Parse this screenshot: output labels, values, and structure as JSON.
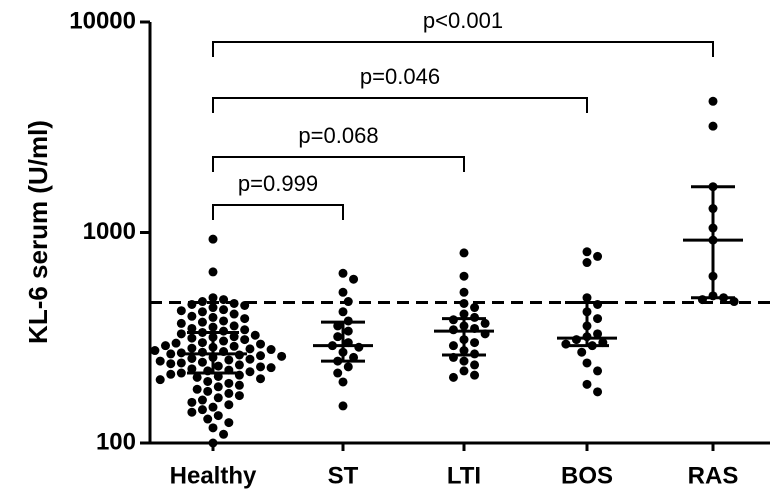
{
  "chart_data": {
    "type": "strip",
    "ylabel": "KL-6 serum (U/ml)",
    "yscale": "log",
    "ylim": [
      100,
      10000
    ],
    "yticks": [
      100,
      1000,
      10000
    ],
    "color": "#000000",
    "categories": [
      "Healthy",
      "ST",
      "LTI",
      "BOS",
      "RAS"
    ],
    "points": [
      [
        930,
        650,
        490,
        480,
        470,
        460,
        455,
        450,
        440,
        430,
        425,
        420,
        410,
        400,
        395,
        390,
        380,
        375,
        370,
        360,
        355,
        350,
        345,
        340,
        335,
        330,
        325,
        320,
        318,
        315,
        310,
        305,
        300,
        298,
        295,
        290,
        288,
        285,
        282,
        280,
        278,
        275,
        272,
        270,
        268,
        265,
        262,
        260,
        258,
        255,
        252,
        250,
        248,
        245,
        242,
        240,
        238,
        235,
        232,
        230,
        228,
        225,
        222,
        220,
        218,
        215,
        212,
        210,
        207,
        205,
        202,
        200,
        196,
        192,
        188,
        185,
        180,
        176,
        172,
        168,
        164,
        160,
        156,
        152,
        148,
        144,
        140,
        135,
        130,
        125,
        118,
        110,
        100
      ],
      [
        640,
        600,
        520,
        470,
        420,
        380,
        360,
        340,
        320,
        300,
        290,
        285,
        270,
        255,
        245,
        230,
        215,
        195,
        150
      ],
      [
        800,
        620,
        520,
        460,
        440,
        410,
        395,
        385,
        370,
        360,
        350,
        345,
        330,
        310,
        300,
        290,
        275,
        265,
        255,
        245,
        235,
        220,
        210,
        205
      ],
      [
        810,
        770,
        720,
        490,
        455,
        420,
        390,
        360,
        330,
        320,
        310,
        300,
        295,
        290,
        270,
        240,
        220,
        190,
        175
      ],
      [
        4200,
        3200,
        1650,
        1300,
        1050,
        920,
        620,
        500,
        490,
        480,
        470
      ]
    ],
    "medians": [
      265,
      290,
      340,
      315,
      920
    ],
    "q1": [
      215,
      245,
      262,
      290,
      490
    ],
    "q3": [
      335,
      375,
      390,
      465,
      1650
    ],
    "threshold": 465,
    "comparisons": [
      {
        "label": "p=0.999",
        "between": [
          "Healthy",
          "ST"
        ]
      },
      {
        "label": "p=0.068",
        "between": [
          "Healthy",
          "LTI"
        ]
      },
      {
        "label": "p=0.046",
        "between": [
          "Healthy",
          "BOS"
        ]
      },
      {
        "label": "p<0.001",
        "between": [
          "Healthy",
          "RAS"
        ]
      }
    ]
  }
}
